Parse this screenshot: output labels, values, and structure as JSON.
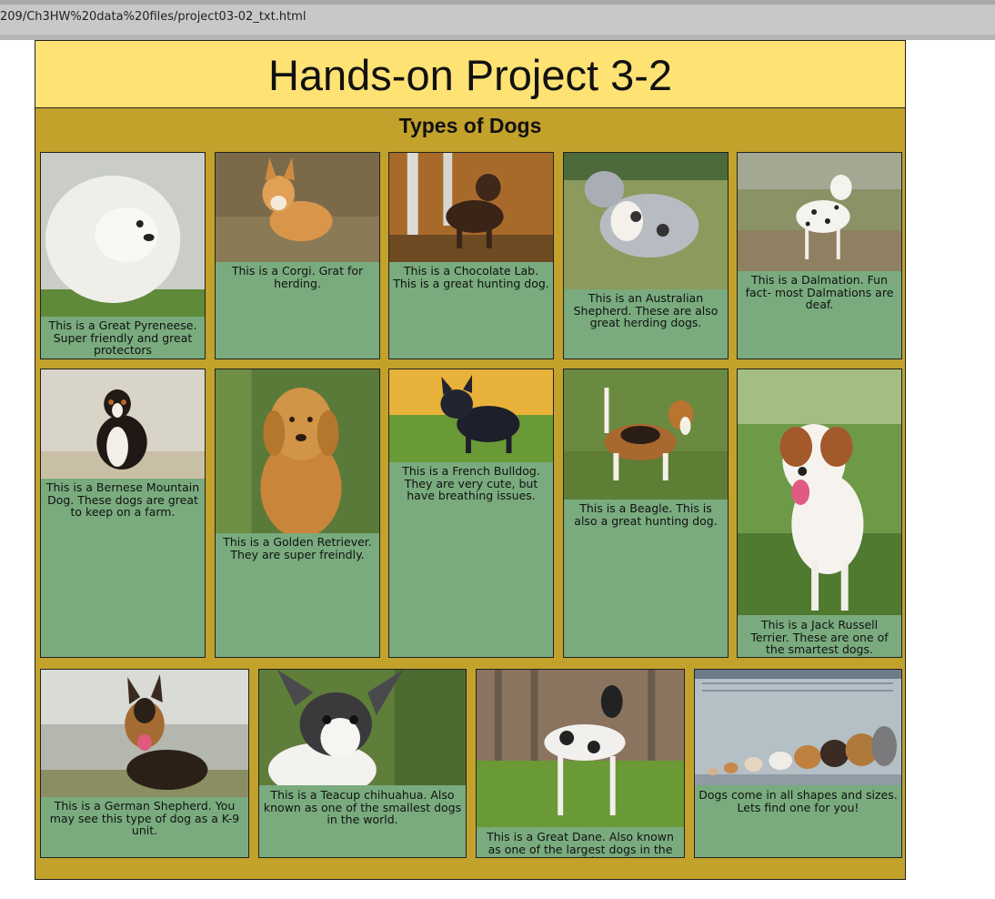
{
  "browser": {
    "url": "209/Ch3HW%20data%20files/project03-02_txt.html"
  },
  "page": {
    "title": "Hands-on Project 3-2",
    "section_title": "Types of Dogs"
  },
  "cards": [
    {
      "caption": "This is a Great Pyreneese. Super friendly and great protectors"
    },
    {
      "caption": "This is a Corgi. Grat for herding."
    },
    {
      "caption": "This is a Chocolate Lab. This is a great hunting dog."
    },
    {
      "caption": "This is an Australian Shepherd. These are also great herding dogs."
    },
    {
      "caption": "This is a Dalmation. Fun fact- most Dalmations are deaf."
    },
    {
      "caption": "This is a Bernese Mountain Dog. These dogs are great to keep on a farm."
    },
    {
      "caption": "This is a Golden Retriever. They are super freindly."
    },
    {
      "caption": "This is a French Bulldog. They are very cute, but have breathing issues."
    },
    {
      "caption": "This is a Beagle. This is also a great hunting dog."
    },
    {
      "caption": "This is a Jack Russell Terrier. These are one of the smartest dogs."
    },
    {
      "caption": "This is a German Shepherd. You may see this type of dog as a K-9 unit."
    },
    {
      "caption": "This is a Teacup chihuahua. Also known as one of the smallest dogs in the world."
    },
    {
      "caption": "This is a Great Dane. Also known as one of the largest dogs in the world."
    },
    {
      "caption": "Dogs come in all shapes and sizes. Lets find one for you!"
    }
  ]
}
